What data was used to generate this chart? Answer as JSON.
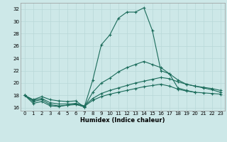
{
  "xlabel": "Humidex (Indice chaleur)",
  "background_color": "#cde8e8",
  "grid_color": "#b8d8d8",
  "line_color": "#1a6b5a",
  "xlim": [
    -0.5,
    23.5
  ],
  "ylim": [
    15.5,
    33
  ],
  "yticks": [
    16,
    18,
    20,
    22,
    24,
    26,
    28,
    30,
    32
  ],
  "xticks": [
    0,
    1,
    2,
    3,
    4,
    5,
    6,
    7,
    8,
    9,
    10,
    11,
    12,
    13,
    14,
    15,
    16,
    17,
    18,
    19,
    20,
    21,
    22,
    23
  ],
  "main_x": [
    0,
    1,
    2,
    3,
    4,
    5,
    6,
    7,
    8,
    9,
    10,
    11,
    12,
    13,
    14,
    15,
    16,
    17,
    18,
    19,
    20
  ],
  "main_y": [
    18.0,
    16.7,
    17.0,
    16.3,
    16.2,
    16.4,
    16.6,
    16.1,
    20.5,
    26.2,
    27.8,
    30.5,
    31.5,
    31.5,
    32.2,
    28.5,
    22.0,
    21.5,
    19.2,
    18.8,
    18.5
  ],
  "flat1_x": [
    0,
    1,
    2,
    3,
    4,
    5,
    6,
    7,
    8,
    9,
    10,
    11,
    12,
    13,
    14,
    15,
    16,
    17,
    18,
    19,
    20,
    21,
    22,
    23
  ],
  "flat1_y": [
    18.0,
    17.0,
    17.3,
    16.5,
    16.3,
    16.4,
    16.5,
    16.2,
    17.2,
    17.8,
    18.2,
    18.5,
    18.8,
    19.1,
    19.4,
    19.6,
    19.8,
    19.5,
    19.0,
    18.7,
    18.5,
    18.4,
    18.3,
    18.2
  ],
  "flat2_x": [
    0,
    1,
    2,
    3,
    4,
    5,
    6,
    7,
    8,
    9,
    10,
    11,
    12,
    13,
    14,
    15,
    16,
    17,
    18,
    19,
    20,
    21,
    22,
    23
  ],
  "flat2_y": [
    18.0,
    17.2,
    17.5,
    16.8,
    16.6,
    16.6,
    16.7,
    16.3,
    17.5,
    18.3,
    18.8,
    19.2,
    19.6,
    20.0,
    20.3,
    20.6,
    20.9,
    20.7,
    20.2,
    19.8,
    19.5,
    19.3,
    19.1,
    18.8
  ],
  "flat3_x": [
    0,
    1,
    2,
    3,
    4,
    5,
    6,
    7,
    8,
    9,
    10,
    11,
    12,
    13,
    14,
    15,
    16,
    17,
    18,
    19,
    20,
    21,
    22,
    23
  ],
  "flat3_y": [
    18.0,
    17.3,
    17.8,
    17.3,
    17.1,
    17.0,
    17.1,
    16.1,
    18.5,
    20.0,
    20.8,
    21.8,
    22.5,
    23.0,
    23.5,
    23.0,
    22.5,
    21.5,
    20.5,
    19.8,
    19.5,
    19.2,
    18.9,
    18.5
  ]
}
